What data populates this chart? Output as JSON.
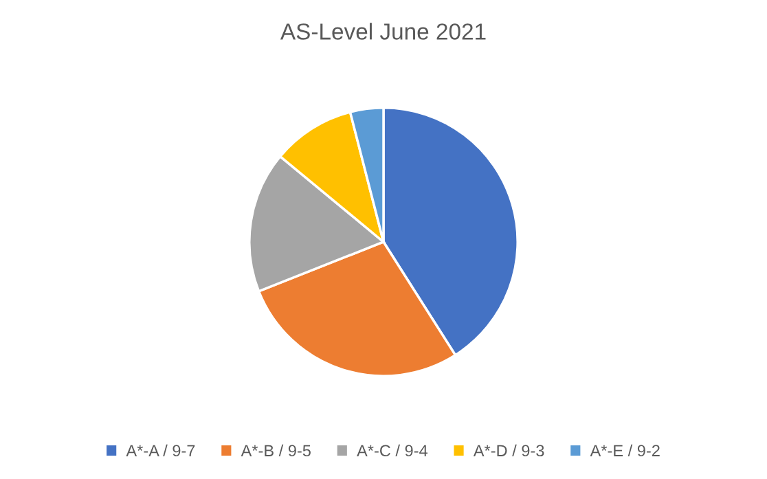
{
  "chart_data": {
    "type": "pie",
    "title": "AS-Level June 2021",
    "categories": [
      "A*-A / 9-7",
      "A*-B / 9-5",
      "A*-C / 9-4",
      "A*-D / 9-3",
      "A*-E / 9-2"
    ],
    "values": [
      41,
      28,
      17,
      10,
      4
    ],
    "colors": [
      "#4472c4",
      "#ed7d31",
      "#a5a5a5",
      "#ffc000",
      "#5b9bd5"
    ],
    "legend": "bottom"
  }
}
